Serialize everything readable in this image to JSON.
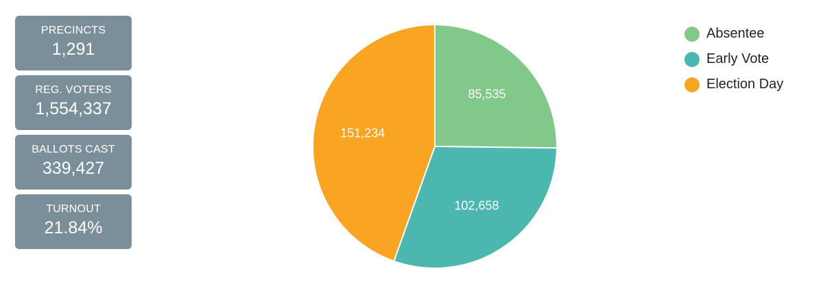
{
  "stats": [
    {
      "label": "PRECINCTS",
      "value": "1,291"
    },
    {
      "label": "REG. VOTERS",
      "value": "1,554,337"
    },
    {
      "label": "BALLOTS CAST",
      "value": "339,427"
    },
    {
      "label": "TURNOUT",
      "value": "21.84%"
    }
  ],
  "chart_data": {
    "type": "pie",
    "title": "",
    "categories": [
      "Absentee",
      "Early Vote",
      "Election Day"
    ],
    "values": [
      85535,
      102658,
      151234
    ],
    "value_labels": [
      "85,535",
      "102,658",
      "151,234"
    ],
    "colors": [
      "#82c88a",
      "#4bb7ae",
      "#f9a423"
    ],
    "legend": "top-right"
  }
}
